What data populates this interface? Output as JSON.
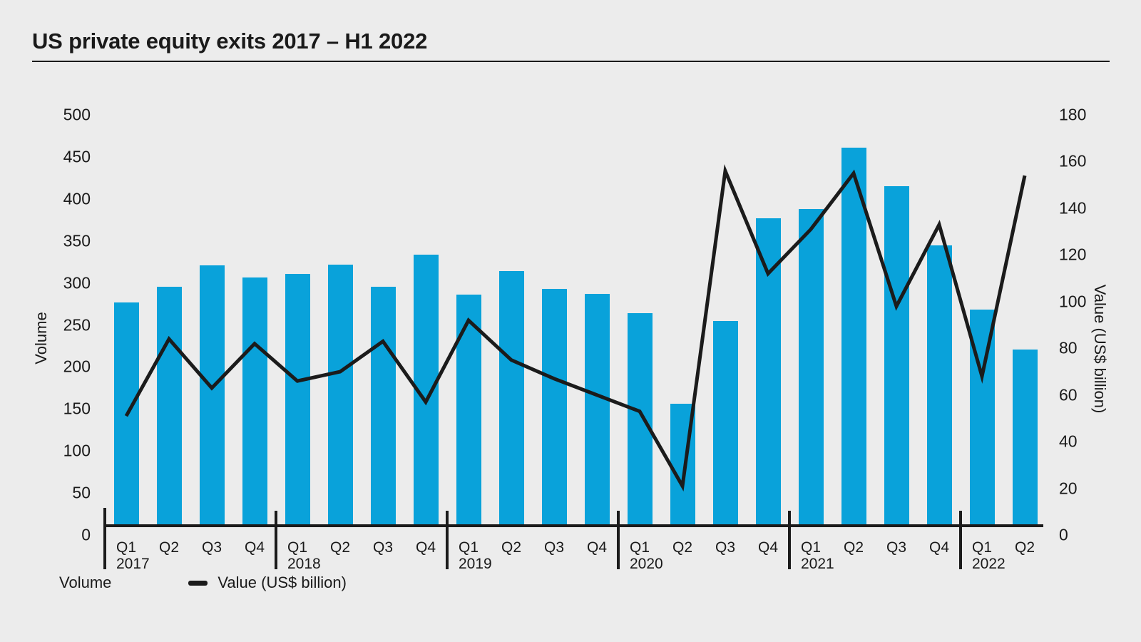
{
  "title": "US private equity exits 2017 – H1 2022",
  "legend": {
    "volume_label": "Volume",
    "value_label": "Value (US$ billion)"
  },
  "axes": {
    "left": {
      "title": "Volume",
      "ticks": [
        0,
        50,
        100,
        150,
        200,
        250,
        300,
        350,
        400,
        450,
        500
      ],
      "range": [
        0,
        500
      ]
    },
    "right": {
      "title": "Value (US$ billion)",
      "ticks": [
        0,
        20,
        40,
        60,
        80,
        100,
        120,
        140,
        160,
        180
      ],
      "range": [
        0,
        180
      ]
    }
  },
  "x_axis": {
    "groups": [
      {
        "year": "2017",
        "quarters": [
          "Q1",
          "Q2",
          "Q3",
          "Q4"
        ]
      },
      {
        "year": "2018",
        "quarters": [
          "Q1",
          "Q2",
          "Q3",
          "Q4"
        ]
      },
      {
        "year": "2019",
        "quarters": [
          "Q1",
          "Q2",
          "Q3",
          "Q4"
        ]
      },
      {
        "year": "2020",
        "quarters": [
          "Q1",
          "Q2",
          "Q3",
          "Q4"
        ]
      },
      {
        "year": "2021",
        "quarters": [
          "Q1",
          "Q2",
          "Q3",
          "Q4"
        ]
      },
      {
        "year": "2022",
        "quarters": [
          "Q1",
          "Q2"
        ]
      }
    ]
  },
  "colors": {
    "bar": "#09A2DA",
    "line": "#1B1B1B",
    "text": "#1A1A1A",
    "background": "#ECECEC"
  },
  "chart_data": {
    "type": "bar",
    "title": "US private equity exits 2017 – H1 2022",
    "categories": [
      "Q1 2017",
      "Q2 2017",
      "Q3 2017",
      "Q4 2017",
      "Q1 2018",
      "Q2 2018",
      "Q3 2018",
      "Q4 2018",
      "Q1 2019",
      "Q2 2019",
      "Q3 2019",
      "Q4 2019",
      "Q1 2020",
      "Q2 2020",
      "Q3 2020",
      "Q4 2020",
      "Q1 2021",
      "Q2 2021",
      "Q3 2021",
      "Q4 2021",
      "Q1 2022",
      "Q2 2022"
    ],
    "series": [
      {
        "name": "Volume",
        "type": "bar",
        "axis": "left",
        "color": "#09A2DA",
        "values": [
          266,
          284,
          310,
          295,
          300,
          311,
          284,
          323,
          275,
          303,
          282,
          276,
          253,
          145,
          244,
          366,
          377,
          450,
          404,
          334,
          257,
          210
        ]
      },
      {
        "name": "Value (US$ billion)",
        "type": "line",
        "axis": "right",
        "color": "#1B1B1B",
        "values": [
          47,
          80,
          59,
          78,
          62,
          66,
          79,
          53,
          88,
          71,
          63,
          56,
          49,
          17,
          152,
          108,
          127,
          151,
          94,
          129,
          64,
          150
        ]
      }
    ],
    "xlabel": "",
    "ylabel_left": "Volume",
    "ylabel_right": "Value (US$ billion)",
    "ylim_left": [
      0,
      500
    ],
    "ylim_right": [
      0,
      180
    ],
    "grid": false,
    "legend_position": "bottom-left"
  }
}
